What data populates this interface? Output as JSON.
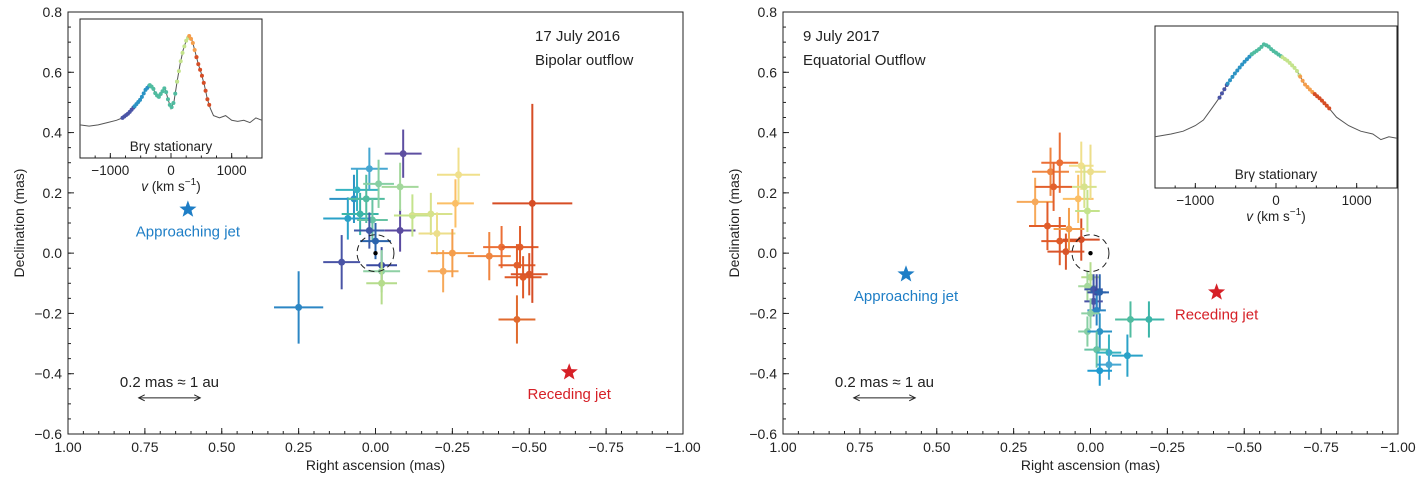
{
  "chart_data": [
    {
      "type": "scatter",
      "title": "17 July 2016",
      "subtitle": "Bipolar outflow",
      "xlabel": "Right ascension (mas)",
      "ylabel": "Declination (mas)",
      "xlim": [
        1.0,
        -1.0
      ],
      "ylim": [
        -0.6,
        0.8
      ],
      "xticks": [
        1.0,
        0.75,
        0.5,
        0.25,
        0.0,
        -0.25,
        -0.5,
        -0.75,
        -1.0
      ],
      "xtick_labels": [
        "1.00",
        "0.75",
        "0.50",
        "0.25",
        "0.00",
        "−0.25",
        "−0.50",
        "−0.75",
        "−1.00"
      ],
      "yticks": [
        -0.6,
        -0.4,
        -0.2,
        0.0,
        0.2,
        0.4,
        0.6,
        0.8
      ],
      "ytick_labels": [
        "−0.6",
        "−0.4",
        "−0.2",
        "0.0",
        "0.2",
        "0.4",
        "0.6",
        "0.8"
      ],
      "grid": false,
      "continuum_center": [
        0.0,
        0.0
      ],
      "continuum_radius": 0.06,
      "scale_bar": {
        "label": "0.2 mas ≈ 1 au",
        "x_from": 0.77,
        "x_to": 0.57,
        "y": -0.48
      },
      "markers": [
        {
          "name": "approaching",
          "label": "Approaching jet",
          "x": 0.61,
          "y": 0.145,
          "color": "#1e7ec6"
        },
        {
          "name": "receding",
          "label": "Receding jet",
          "x": -0.63,
          "y": -0.395,
          "color": "#d62027"
        }
      ],
      "points": [
        {
          "x": 0.25,
          "y": -0.18,
          "ex": 0.08,
          "ey": 0.12,
          "color": "#2c86c4"
        },
        {
          "x": 0.11,
          "y": -0.03,
          "ex": 0.06,
          "ey": 0.09,
          "color": "#4a54a6"
        },
        {
          "x": 0.07,
          "y": 0.18,
          "ex": 0.08,
          "ey": 0.08,
          "color": "#2b93c4"
        },
        {
          "x": 0.09,
          "y": 0.115,
          "ex": 0.08,
          "ey": 0.07,
          "color": "#2aa2c8"
        },
        {
          "x": 0.06,
          "y": 0.21,
          "ex": 0.07,
          "ey": 0.07,
          "color": "#36b3c1"
        },
        {
          "x": 0.02,
          "y": 0.28,
          "ex": 0.06,
          "ey": 0.07,
          "color": "#46a7d2"
        },
        {
          "x": 0.05,
          "y": 0.13,
          "ex": 0.06,
          "ey": 0.07,
          "color": "#3bb5a8"
        },
        {
          "x": 0.03,
          "y": 0.18,
          "ex": 0.06,
          "ey": 0.08,
          "color": "#50bca0"
        },
        {
          "x": 0.01,
          "y": 0.11,
          "ex": 0.05,
          "ey": 0.07,
          "color": "#67c3a4"
        },
        {
          "x": -0.01,
          "y": 0.23,
          "ex": 0.05,
          "ey": 0.08,
          "color": "#87cfa4"
        },
        {
          "x": 0.02,
          "y": 0.075,
          "ex": 0.05,
          "ey": 0.06,
          "color": "#3f5aa8"
        },
        {
          "x": 0.0,
          "y": 0.04,
          "ex": 0.05,
          "ey": 0.06,
          "color": "#2a63ac"
        },
        {
          "x": -0.02,
          "y": -0.04,
          "ex": 0.05,
          "ey": 0.06,
          "color": "#3a4aa0"
        },
        {
          "x": -0.08,
          "y": 0.075,
          "ex": 0.05,
          "ey": 0.07,
          "color": "#5a4aa0"
        },
        {
          "x": -0.09,
          "y": 0.33,
          "ex": 0.06,
          "ey": 0.08,
          "color": "#5e4fa1"
        },
        {
          "x": -0.08,
          "y": 0.22,
          "ex": 0.06,
          "ey": 0.08,
          "color": "#a4d89c"
        },
        {
          "x": -0.02,
          "y": -0.06,
          "ex": 0.06,
          "ey": 0.07,
          "color": "#8ed0a4"
        },
        {
          "x": -0.02,
          "y": -0.1,
          "ex": 0.05,
          "ey": 0.07,
          "color": "#b5dc8c"
        },
        {
          "x": -0.12,
          "y": 0.125,
          "ex": 0.06,
          "ey": 0.07,
          "color": "#c4e38c"
        },
        {
          "x": -0.18,
          "y": 0.13,
          "ex": 0.07,
          "ey": 0.07,
          "color": "#d7e28c"
        },
        {
          "x": -0.2,
          "y": 0.065,
          "ex": 0.06,
          "ey": 0.07,
          "color": "#ecde8a"
        },
        {
          "x": -0.26,
          "y": 0.165,
          "ex": 0.06,
          "ey": 0.08,
          "color": "#fbbf66"
        },
        {
          "x": -0.27,
          "y": 0.26,
          "ex": 0.07,
          "ey": 0.09,
          "color": "#f0e08c"
        },
        {
          "x": -0.22,
          "y": -0.06,
          "ex": 0.05,
          "ey": 0.07,
          "color": "#f6a95a"
        },
        {
          "x": -0.25,
          "y": 0.0,
          "ex": 0.07,
          "ey": 0.08,
          "color": "#f49e4c"
        },
        {
          "x": -0.37,
          "y": -0.01,
          "ex": 0.07,
          "ey": 0.08,
          "color": "#ef8540"
        },
        {
          "x": -0.41,
          "y": 0.02,
          "ex": 0.06,
          "ey": 0.07,
          "color": "#eb6f36"
        },
        {
          "x": -0.46,
          "y": -0.04,
          "ex": 0.06,
          "ey": 0.07,
          "color": "#e2602c"
        },
        {
          "x": -0.47,
          "y": 0.02,
          "ex": 0.06,
          "ey": 0.07,
          "color": "#e15d2a"
        },
        {
          "x": -0.48,
          "y": -0.08,
          "ex": 0.06,
          "ey": 0.07,
          "color": "#df5a28"
        },
        {
          "x": -0.46,
          "y": -0.22,
          "ex": 0.06,
          "ey": 0.08,
          "color": "#e06a2e"
        },
        {
          "x": -0.51,
          "y": 0.165,
          "ex": 0.13,
          "ey": 0.33,
          "color": "#d64d25"
        },
        {
          "x": -0.5,
          "y": -0.07,
          "ex": 0.06,
          "ey": 0.07,
          "color": "#d9552a"
        }
      ],
      "inset": {
        "label": "Brγ stationary",
        "xlabel_var": "v",
        "xlabel_unit": " (km s",
        "xlabel_exp": "−1",
        "xlabel_close": ")",
        "xlim": [
          -1500,
          1500
        ],
        "ylim": [
          0.0,
          1.0
        ],
        "xticks": [
          -1000,
          0,
          1000
        ],
        "xtick_labels": [
          "−1000",
          "0",
          "1000"
        ],
        "profile": [
          [
            -1500,
            0.18
          ],
          [
            -1350,
            0.17
          ],
          [
            -1200,
            0.18
          ],
          [
            -1050,
            0.2
          ],
          [
            -900,
            0.22
          ],
          [
            -800,
            0.24
          ],
          [
            -700,
            0.28
          ],
          [
            -600,
            0.34
          ],
          [
            -500,
            0.4
          ],
          [
            -420,
            0.48
          ],
          [
            -350,
            0.52
          ],
          [
            -300,
            0.5
          ],
          [
            -250,
            0.44
          ],
          [
            -200,
            0.42
          ],
          [
            -150,
            0.46
          ],
          [
            -100,
            0.5
          ],
          [
            -50,
            0.4
          ],
          [
            0,
            0.32
          ],
          [
            50,
            0.38
          ],
          [
            100,
            0.55
          ],
          [
            150,
            0.7
          ],
          [
            200,
            0.82
          ],
          [
            250,
            0.9
          ],
          [
            300,
            0.94
          ],
          [
            350,
            0.9
          ],
          [
            400,
            0.8
          ],
          [
            450,
            0.7
          ],
          [
            500,
            0.62
          ],
          [
            550,
            0.52
          ],
          [
            600,
            0.4
          ],
          [
            650,
            0.32
          ],
          [
            700,
            0.26
          ],
          [
            800,
            0.24
          ],
          [
            900,
            0.26
          ],
          [
            1000,
            0.22
          ],
          [
            1100,
            0.21
          ],
          [
            1200,
            0.22
          ],
          [
            1300,
            0.2
          ],
          [
            1400,
            0.24
          ],
          [
            1500,
            0.22
          ]
        ],
        "colored": [
          {
            "from": -800,
            "to": -600,
            "color": "#4a54a6"
          },
          {
            "from": -600,
            "to": -350,
            "color": "#2b93c4"
          },
          {
            "from": -350,
            "to": 100,
            "color": "#50bca0"
          },
          {
            "from": 100,
            "to": 300,
            "color": "#c4e38c"
          },
          {
            "from": 300,
            "to": 420,
            "color": "#f49e4c"
          },
          {
            "from": 420,
            "to": 650,
            "color": "#d64d25"
          }
        ]
      }
    },
    {
      "type": "scatter",
      "title": "9 July 2017",
      "subtitle": "Equatorial Outflow",
      "xlabel": "Right ascension (mas)",
      "ylabel": "Declination (mas)",
      "xlim": [
        1.0,
        -1.0
      ],
      "ylim": [
        -0.6,
        0.8
      ],
      "xticks": [
        1.0,
        0.75,
        0.5,
        0.25,
        0.0,
        -0.25,
        -0.5,
        -0.75,
        -1.0
      ],
      "xtick_labels": [
        "1.00",
        "0.75",
        "0.50",
        "0.25",
        "0.00",
        "−0.25",
        "−0.50",
        "−0.75",
        "−1.00"
      ],
      "yticks": [
        -0.6,
        -0.4,
        -0.2,
        0.0,
        0.2,
        0.4,
        0.6,
        0.8
      ],
      "ytick_labels": [
        "−0.6",
        "−0.4",
        "−0.2",
        "0.0",
        "0.2",
        "0.4",
        "0.6",
        "0.8"
      ],
      "grid": false,
      "continuum_center": [
        0.0,
        0.0
      ],
      "continuum_radius": 0.06,
      "scale_bar": {
        "label": "0.2 mas ≈ 1 au",
        "x_from": 0.77,
        "x_to": 0.57,
        "y": -0.48
      },
      "markers": [
        {
          "name": "approaching",
          "label": "Approaching jet",
          "x": 0.6,
          "y": -0.07,
          "color": "#1e7ec6"
        },
        {
          "name": "receding",
          "label": "Receding jet",
          "x": -0.41,
          "y": -0.13,
          "color": "#d62027"
        }
      ],
      "points": [
        {
          "x": 0.18,
          "y": 0.17,
          "ex": 0.06,
          "ey": 0.08,
          "color": "#f6a95a"
        },
        {
          "x": 0.13,
          "y": 0.27,
          "ex": 0.06,
          "ey": 0.08,
          "color": "#ef8540"
        },
        {
          "x": 0.1,
          "y": 0.3,
          "ex": 0.06,
          "ey": 0.1,
          "color": "#eb6f36"
        },
        {
          "x": 0.12,
          "y": 0.22,
          "ex": 0.06,
          "ey": 0.08,
          "color": "#e2602c"
        },
        {
          "x": 0.14,
          "y": 0.09,
          "ex": 0.06,
          "ey": 0.08,
          "color": "#e15d2a"
        },
        {
          "x": 0.1,
          "y": 0.04,
          "ex": 0.06,
          "ey": 0.08,
          "color": "#df5a28"
        },
        {
          "x": 0.08,
          "y": 0.005,
          "ex": 0.06,
          "ey": 0.06,
          "color": "#d9552a"
        },
        {
          "x": 0.03,
          "y": 0.045,
          "ex": 0.06,
          "ey": 0.07,
          "color": "#d64d25"
        },
        {
          "x": 0.07,
          "y": 0.08,
          "ex": 0.05,
          "ey": 0.07,
          "color": "#f49e4c"
        },
        {
          "x": 0.04,
          "y": 0.18,
          "ex": 0.05,
          "ey": 0.08,
          "color": "#fbbf66"
        },
        {
          "x": 0.03,
          "y": 0.29,
          "ex": 0.04,
          "ey": 0.08,
          "color": "#f0e08c"
        },
        {
          "x": 0.0,
          "y": 0.27,
          "ex": 0.05,
          "ey": 0.09,
          "color": "#ecde8a"
        },
        {
          "x": 0.02,
          "y": 0.22,
          "ex": 0.04,
          "ey": 0.07,
          "color": "#d7e28c"
        },
        {
          "x": 0.01,
          "y": 0.14,
          "ex": 0.04,
          "ey": 0.07,
          "color": "#c4e38c"
        },
        {
          "x": 0.0,
          "y": -0.08,
          "ex": 0.03,
          "ey": 0.05,
          "color": "#b5dc8c"
        },
        {
          "x": 0.01,
          "y": -0.11,
          "ex": 0.03,
          "ey": 0.05,
          "color": "#a4d89c"
        },
        {
          "x": -0.01,
          "y": -0.12,
          "ex": 0.03,
          "ey": 0.05,
          "color": "#3f5aa8"
        },
        {
          "x": -0.02,
          "y": -0.13,
          "ex": 0.03,
          "ey": 0.06,
          "color": "#3a4aa0"
        },
        {
          "x": -0.03,
          "y": -0.13,
          "ex": 0.03,
          "ey": 0.06,
          "color": "#2a63ac"
        },
        {
          "x": -0.01,
          "y": -0.16,
          "ex": 0.03,
          "ey": 0.05,
          "color": "#4a54a6"
        },
        {
          "x": -0.02,
          "y": -0.19,
          "ex": 0.03,
          "ey": 0.05,
          "color": "#2c86c4"
        },
        {
          "x": 0.0,
          "y": -0.2,
          "ex": 0.03,
          "ey": 0.05,
          "color": "#8ed0a4"
        },
        {
          "x": 0.01,
          "y": -0.26,
          "ex": 0.03,
          "ey": 0.05,
          "color": "#87cfa4"
        },
        {
          "x": -0.03,
          "y": -0.26,
          "ex": 0.04,
          "ey": 0.06,
          "color": "#2b93c4"
        },
        {
          "x": -0.13,
          "y": -0.22,
          "ex": 0.05,
          "ey": 0.06,
          "color": "#50bca0"
        },
        {
          "x": -0.19,
          "y": -0.22,
          "ex": 0.05,
          "ey": 0.06,
          "color": "#3bb5a8"
        },
        {
          "x": -0.02,
          "y": -0.32,
          "ex": 0.04,
          "ey": 0.06,
          "color": "#67c3a4"
        },
        {
          "x": -0.06,
          "y": -0.33,
          "ex": 0.04,
          "ey": 0.06,
          "color": "#36b3c1"
        },
        {
          "x": -0.12,
          "y": -0.34,
          "ex": 0.05,
          "ey": 0.07,
          "color": "#2aa2c8"
        },
        {
          "x": -0.06,
          "y": -0.37,
          "ex": 0.04,
          "ey": 0.05,
          "color": "#46a7d2"
        },
        {
          "x": -0.03,
          "y": -0.39,
          "ex": 0.04,
          "ey": 0.05,
          "color": "#1f9bd0"
        }
      ],
      "inset": {
        "label": "Brγ stationary",
        "xlabel_var": "v",
        "xlabel_unit": " (km s",
        "xlabel_exp": "−1",
        "xlabel_close": ")",
        "xlim": [
          -1500,
          1500
        ],
        "ylim": [
          0.0,
          1.0
        ],
        "xticks": [
          -1000,
          0,
          1000
        ],
        "xtick_labels": [
          "−1000",
          "0",
          "1000"
        ],
        "profile": [
          [
            -1500,
            0.28
          ],
          [
            -1300,
            0.3
          ],
          [
            -1150,
            0.32
          ],
          [
            -1000,
            0.36
          ],
          [
            -900,
            0.4
          ],
          [
            -800,
            0.48
          ],
          [
            -700,
            0.56
          ],
          [
            -600,
            0.66
          ],
          [
            -500,
            0.74
          ],
          [
            -400,
            0.81
          ],
          [
            -300,
            0.87
          ],
          [
            -200,
            0.91
          ],
          [
            -150,
            0.94
          ],
          [
            -100,
            0.93
          ],
          [
            -50,
            0.9
          ],
          [
            0,
            0.88
          ],
          [
            50,
            0.86
          ],
          [
            150,
            0.82
          ],
          [
            250,
            0.76
          ],
          [
            350,
            0.66
          ],
          [
            450,
            0.6
          ],
          [
            550,
            0.55
          ],
          [
            650,
            0.49
          ],
          [
            750,
            0.42
          ],
          [
            900,
            0.36
          ],
          [
            1050,
            0.32
          ],
          [
            1200,
            0.3
          ],
          [
            1300,
            0.26
          ],
          [
            1400,
            0.28
          ],
          [
            1500,
            0.27
          ]
        ],
        "colored": [
          {
            "from": -700,
            "to": -600,
            "color": "#4a54a6"
          },
          {
            "from": -600,
            "to": -300,
            "color": "#2b93c4"
          },
          {
            "from": -300,
            "to": 80,
            "color": "#50bca0"
          },
          {
            "from": 80,
            "to": 300,
            "color": "#c4e38c"
          },
          {
            "from": 300,
            "to": 480,
            "color": "#f49e4c"
          },
          {
            "from": 480,
            "to": 680,
            "color": "#d64d25"
          }
        ]
      }
    }
  ]
}
